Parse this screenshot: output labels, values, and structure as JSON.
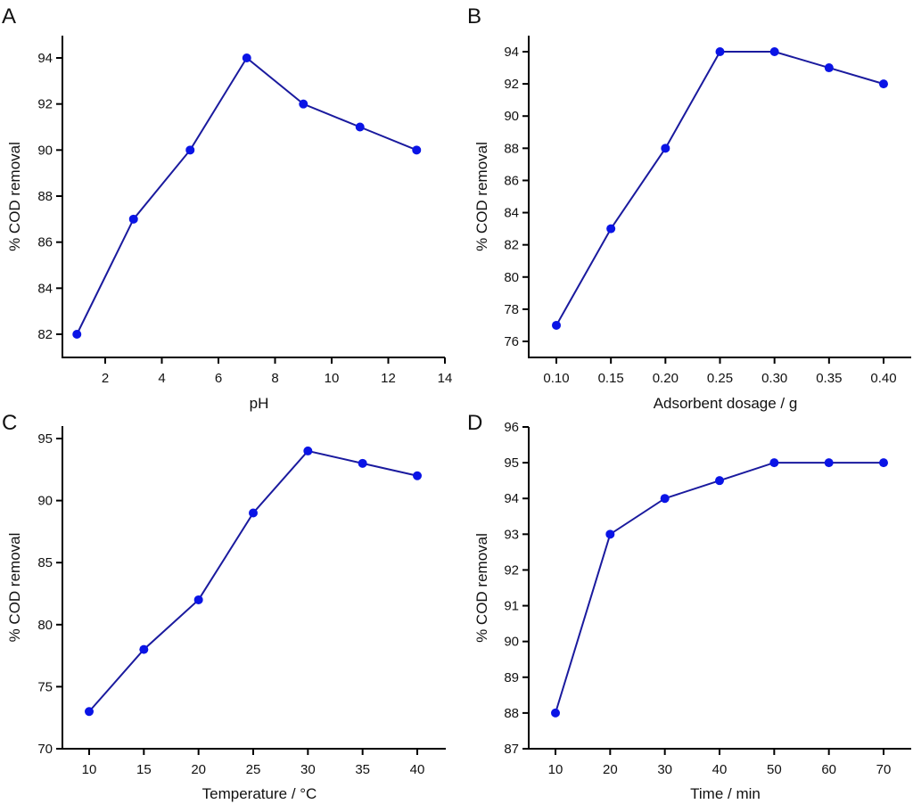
{
  "figure": {
    "panels": [
      "A",
      "B",
      "C",
      "D"
    ]
  },
  "chart_data": [
    {
      "panel": "A",
      "type": "line",
      "title": "",
      "xlabel": "pH",
      "ylabel": "% COD removal",
      "x": [
        1,
        3,
        5,
        7,
        9,
        11,
        13
      ],
      "series": [
        {
          "name": "% COD removal",
          "values": [
            82,
            87,
            90,
            94,
            92,
            91,
            90
          ]
        }
      ],
      "xticks": [
        "2",
        "4",
        "6",
        "8",
        "10",
        "12",
        "14"
      ],
      "xtick_values": [
        2,
        4,
        6,
        8,
        10,
        12,
        14
      ],
      "yticks": [
        "82",
        "84",
        "86",
        "88",
        "90",
        "92",
        "94"
      ],
      "ytick_values": [
        82,
        84,
        86,
        88,
        90,
        92,
        94
      ],
      "xlim": [
        0.5,
        14
      ],
      "ylim": [
        81,
        95
      ],
      "grid": false,
      "color": "#0a14e6",
      "line_color": "#1a1a9e"
    },
    {
      "panel": "B",
      "type": "line",
      "title": "",
      "xlabel": "Adsorbent dosage / g",
      "ylabel": "% COD removal",
      "x": [
        0.1,
        0.15,
        0.2,
        0.25,
        0.3,
        0.35,
        0.4
      ],
      "series": [
        {
          "name": "% COD removal",
          "values": [
            77,
            83,
            88,
            94,
            94,
            93,
            92
          ]
        }
      ],
      "xticks": [
        "0.10",
        "0.15",
        "0.20",
        "0.25",
        "0.30",
        "0.35",
        "0.40"
      ],
      "xtick_values": [
        0.1,
        0.15,
        0.2,
        0.25,
        0.3,
        0.35,
        0.4
      ],
      "yticks": [
        "76",
        "78",
        "80",
        "82",
        "84",
        "86",
        "88",
        "90",
        "92",
        "94"
      ],
      "ytick_values": [
        76,
        78,
        80,
        82,
        84,
        86,
        88,
        90,
        92,
        94
      ],
      "xlim": [
        0.075,
        0.42
      ],
      "ylim": [
        75,
        95
      ],
      "grid": false,
      "color": "#0a14e6",
      "line_color": "#1a1a9e"
    },
    {
      "panel": "C",
      "type": "line",
      "title": "",
      "xlabel": "Temperature / °C",
      "ylabel": "% COD removal",
      "x": [
        10,
        15,
        20,
        25,
        30,
        35,
        40
      ],
      "series": [
        {
          "name": "% COD removal",
          "values": [
            73,
            78,
            82,
            89,
            94,
            93,
            92
          ]
        }
      ],
      "xticks": [
        "10",
        "15",
        "20",
        "25",
        "30",
        "35",
        "40"
      ],
      "xtick_values": [
        10,
        15,
        20,
        25,
        30,
        35,
        40
      ],
      "yticks": [
        "70",
        "75",
        "80",
        "85",
        "90",
        "95"
      ],
      "ytick_values": [
        70,
        75,
        80,
        85,
        90,
        95
      ],
      "xlim": [
        6,
        42.5
      ],
      "ylim": [
        70,
        96
      ],
      "grid": false,
      "color": "#0a14e6",
      "line_color": "#1a1a9e"
    },
    {
      "panel": "D",
      "type": "line",
      "title": "",
      "xlabel": "Time / min",
      "ylabel": "% COD removal",
      "x": [
        10,
        20,
        30,
        40,
        50,
        60,
        70
      ],
      "series": [
        {
          "name": "% COD removal",
          "values": [
            88,
            93,
            94,
            94.5,
            95,
            95,
            95
          ]
        }
      ],
      "xticks": [
        "10",
        "20",
        "30",
        "40",
        "50",
        "60",
        "70"
      ],
      "xtick_values": [
        10,
        20,
        30,
        40,
        50,
        60,
        70
      ],
      "yticks": [
        "87",
        "88",
        "89",
        "90",
        "91",
        "92",
        "93",
        "94",
        "95",
        "96"
      ],
      "ytick_values": [
        87,
        88,
        89,
        90,
        91,
        92,
        93,
        94,
        95,
        96
      ],
      "xlim": [
        5,
        75
      ],
      "ylim": [
        87,
        96
      ],
      "grid": false,
      "color": "#0a14e6",
      "line_color": "#1a1a9e"
    }
  ]
}
